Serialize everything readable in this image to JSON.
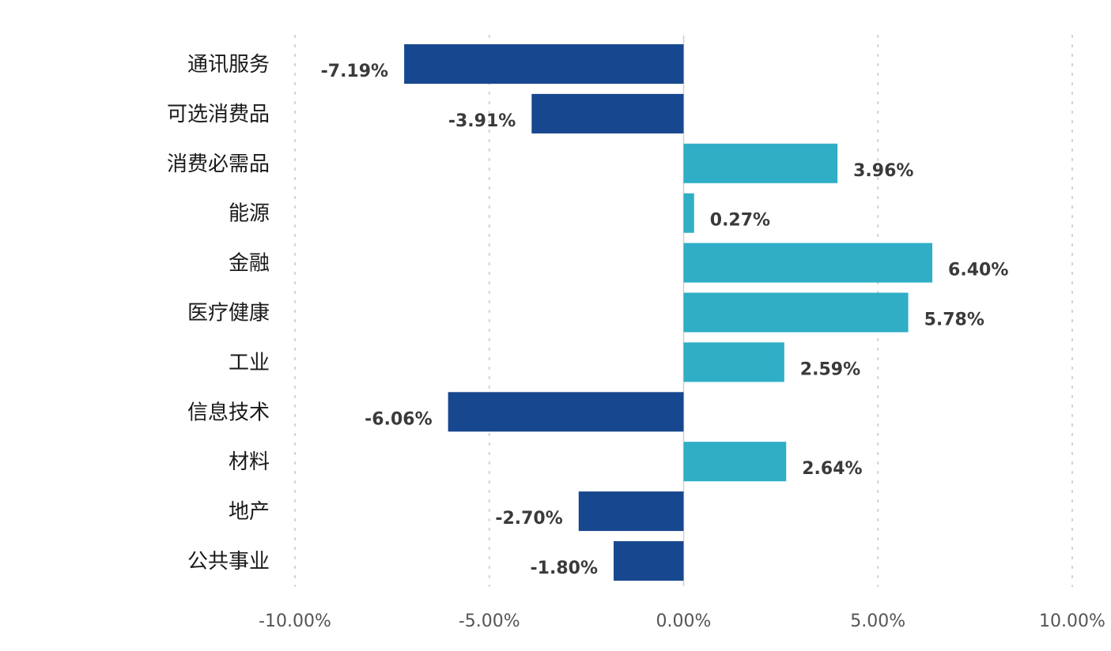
{
  "chart_data": {
    "type": "bar",
    "orientation": "horizontal",
    "categories": [
      "通讯服务",
      "可选消费品",
      "消费必需品",
      "能源",
      "金融",
      "医疗健康",
      "工业",
      "信息技术",
      "材料",
      "地产",
      "公共事业"
    ],
    "values": [
      -7.19,
      -3.91,
      3.96,
      0.27,
      6.4,
      5.78,
      2.59,
      -6.06,
      2.64,
      -2.7,
      -1.8
    ],
    "value_labels": [
      "-7.19%",
      "-3.91%",
      "3.96%",
      "0.27%",
      "6.40%",
      "5.78%",
      "2.59%",
      "-6.06%",
      "2.64%",
      "-2.70%",
      "-1.80%"
    ],
    "xlim": [
      -10,
      10
    ],
    "xticks": [
      -10,
      -5,
      0,
      5,
      10
    ],
    "xtick_labels": [
      "-10.00%",
      "-5.00%",
      "0.00%",
      "5.00%",
      "10.00%"
    ],
    "grid": true,
    "legend": false,
    "colors": {
      "negative": "#17478E",
      "positive": "#2FAEC6"
    }
  }
}
